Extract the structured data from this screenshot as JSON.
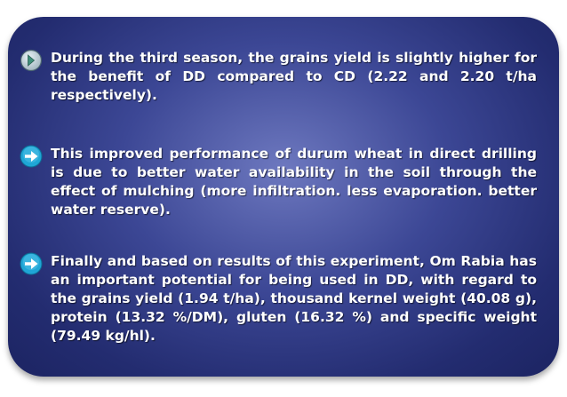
{
  "bullets": [
    {
      "icon": "chevron-right-circle-icon",
      "text": "During the third season, the grains yield is slightly higher for the benefit of DD compared to CD (2.22 and 2.20 t/ha respectively)."
    },
    {
      "icon": "arrow-right-circle-icon",
      "text": "This improved performance of durum wheat in direct drilling is due to better water availability in the soil through the effect of mulching (more infiltration. less evaporation. better water reserve)."
    },
    {
      "icon": "arrow-right-circle-icon",
      "text": "Finally and based on results of this experiment, Om Rabia has an important potential for being used in DD, with regard to the grains yield (1.94 t/ha), thousand kernel weight (40.08 g), protein (13.32 %/DM), gluten (16.32 %) and specific weight (79.49 kg/hl)."
    }
  ],
  "colors": {
    "panel_center": "#6d78bf",
    "panel_edge": "#1c2462",
    "text": "#ffffff",
    "bullet_icon": "#1fa6d6"
  }
}
